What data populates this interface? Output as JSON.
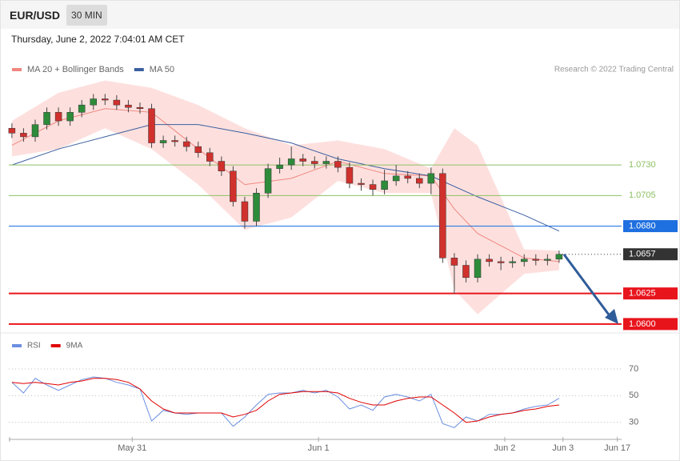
{
  "header": {
    "symbol": "EUR/USD",
    "timeframe": "30 MIN",
    "timestamp": "Thursday, June 2, 2022 7:04:01 AM CET"
  },
  "chart_data": [
    {
      "type": "candlestick",
      "credit": "Research © 2022 Trading Central",
      "up_color": "#2e8b3a",
      "down_color": "#d0312d",
      "xlim": [
        -0.8,
        157.1
      ],
      "ylim": [
        1.0596,
        1.0802
      ],
      "x": [
        0,
        3,
        6,
        9,
        12,
        15,
        18,
        21,
        24,
        27,
        30,
        33,
        36,
        39,
        42,
        45,
        48,
        51,
        54,
        57,
        60,
        63,
        66,
        69,
        72,
        75,
        78,
        81,
        84,
        87,
        90,
        93,
        96,
        99,
        102,
        105,
        108,
        111,
        114,
        117,
        120,
        123,
        126,
        129,
        132,
        135,
        138,
        141
      ],
      "open": [
        1.076,
        1.0756,
        1.0753,
        1.0763,
        1.0773,
        1.0766,
        1.0773,
        1.0779,
        1.0784,
        1.0783,
        1.0779,
        1.0777,
        1.0776,
        1.0748,
        1.075,
        1.0749,
        1.0745,
        1.074,
        1.0733,
        1.0725,
        1.07,
        1.0684,
        1.0707,
        1.0727,
        1.073,
        1.0735,
        1.0733,
        1.0731,
        1.0733,
        1.0728,
        1.0715,
        1.0714,
        1.071,
        1.0717,
        1.0721,
        1.0719,
        1.0715,
        1.0723,
        1.0654,
        1.0648,
        1.0638,
        1.0653,
        1.0651,
        1.065,
        1.0651,
        1.0653,
        1.0652,
        1.0653
      ],
      "high": [
        1.0764,
        1.076,
        1.0767,
        1.0777,
        1.0777,
        1.0777,
        1.0783,
        1.0788,
        1.0788,
        1.0787,
        1.0783,
        1.0781,
        1.078,
        1.0754,
        1.0754,
        1.0753,
        1.0749,
        1.0744,
        1.0737,
        1.0729,
        1.0704,
        1.0711,
        1.0731,
        1.0736,
        1.0745,
        1.0739,
        1.0737,
        1.0737,
        1.0737,
        1.0732,
        1.0719,
        1.0718,
        1.0726,
        1.073,
        1.0725,
        1.0723,
        1.0728,
        1.0727,
        1.0658,
        1.0652,
        1.0657,
        1.0657,
        1.0655,
        1.0655,
        1.0657,
        1.0657,
        1.0657,
        1.066
      ],
      "low": [
        1.0752,
        1.0749,
        1.0749,
        1.0759,
        1.0762,
        1.0762,
        1.0769,
        1.0775,
        1.0779,
        1.0775,
        1.0773,
        1.0772,
        1.0744,
        1.0744,
        1.0745,
        1.0741,
        1.0736,
        1.0729,
        1.0721,
        1.0696,
        1.0678,
        1.068,
        1.0703,
        1.0723,
        1.0726,
        1.0729,
        1.0727,
        1.0727,
        1.0724,
        1.0711,
        1.0709,
        1.0705,
        1.0706,
        1.0713,
        1.0715,
        1.0711,
        1.0706,
        1.065,
        1.0625,
        1.0634,
        1.0634,
        1.0647,
        1.0644,
        1.0646,
        1.0647,
        1.0648,
        1.0648,
        1.065
      ],
      "close": [
        1.0756,
        1.0753,
        1.0763,
        1.0773,
        1.0766,
        1.0773,
        1.0779,
        1.0784,
        1.0783,
        1.0779,
        1.0777,
        1.0776,
        1.0748,
        1.075,
        1.0749,
        1.0745,
        1.074,
        1.0733,
        1.0725,
        1.07,
        1.0684,
        1.0707,
        1.0727,
        1.073,
        1.0735,
        1.0733,
        1.0731,
        1.0733,
        1.0728,
        1.0715,
        1.0714,
        1.071,
        1.0717,
        1.0721,
        1.0719,
        1.0715,
        1.0723,
        1.0654,
        1.0648,
        1.0638,
        1.0653,
        1.0651,
        1.065,
        1.0651,
        1.0653,
        1.0652,
        1.0653,
        1.0657
      ],
      "overlays": [
        {
          "name": "MA 20 + Bollinger Bands",
          "color": "#f0877f",
          "band_color": "#fde0de",
          "x": [
            0,
            12,
            24,
            36,
            48,
            60,
            72,
            84,
            96,
            108,
            114,
            120,
            132,
            141
          ],
          "values": [
            1.0746,
            1.0766,
            1.0776,
            1.0773,
            1.0743,
            1.0714,
            1.0719,
            1.0733,
            1.0723,
            1.0721,
            1.0694,
            1.0674,
            1.0654,
            1.0651
          ],
          "upper": [
            1.0766,
            1.0789,
            1.0799,
            1.0793,
            1.0779,
            1.076,
            1.0746,
            1.075,
            1.0743,
            1.0727,
            1.076,
            1.0746,
            1.0661,
            1.066
          ],
          "lower": [
            1.0737,
            1.0743,
            1.076,
            1.0743,
            1.0714,
            1.0677,
            1.0687,
            1.0717,
            1.0707,
            1.0707,
            1.0628,
            1.0608,
            1.0641,
            1.0644
          ]
        },
        {
          "name": "MA 50",
          "color": "#3b5fa0",
          "x": [
            0,
            12,
            24,
            36,
            48,
            60,
            72,
            84,
            96,
            108,
            120,
            132,
            141
          ],
          "values": [
            1.073,
            1.0743,
            1.0753,
            1.0763,
            1.0763,
            1.0756,
            1.0748,
            1.0735,
            1.0727,
            1.0721,
            1.0704,
            1.0689,
            1.0676
          ]
        }
      ],
      "levels": [
        {
          "value": 1.073,
          "label": "1.0730",
          "color": "#8cc063",
          "boxed": false
        },
        {
          "value": 1.0705,
          "label": "1.0705",
          "color": "#8cc063",
          "boxed": false
        },
        {
          "value": 1.068,
          "label": "1.0680",
          "color": "#1e6fe0",
          "boxed": true
        },
        {
          "value": 1.0657,
          "label": "1.0657",
          "color": "#333333",
          "boxed": true,
          "dotted": true
        },
        {
          "value": 1.0625,
          "label": "1.0625",
          "color": "#e8141c",
          "boxed": true
        },
        {
          "value": 1.06,
          "label": "1.0600",
          "color": "#e8141c",
          "boxed": true
        }
      ]
    },
    {
      "type": "line",
      "xlim": [
        -0.8,
        157.1
      ],
      "ylim": [
        22,
        79
      ],
      "yticks": [
        30,
        50,
        70
      ],
      "xticks": [
        {
          "value": 31,
          "label": "May 31"
        },
        {
          "value": 79,
          "label": "Jun 1"
        },
        {
          "value": 127,
          "label": "Jun 2"
        },
        {
          "value": 142,
          "label": "Jun 3"
        },
        {
          "value": 156,
          "label": "Jun 17"
        }
      ],
      "x": [
        0,
        3,
        6,
        9,
        12,
        15,
        18,
        21,
        24,
        27,
        30,
        33,
        36,
        39,
        42,
        45,
        48,
        51,
        54,
        57,
        60,
        63,
        66,
        69,
        72,
        75,
        78,
        81,
        84,
        87,
        90,
        93,
        96,
        99,
        102,
        105,
        108,
        111,
        114,
        117,
        120,
        123,
        126,
        129,
        132,
        135,
        138,
        141
      ],
      "series": [
        {
          "name": "RSI",
          "color": "#6b8fe0",
          "values": [
            60,
            52,
            63,
            58,
            54,
            58,
            62,
            64,
            63,
            60,
            58,
            55,
            31,
            39,
            37,
            36,
            37,
            37,
            37,
            27,
            34,
            43,
            51,
            52,
            52,
            54,
            52,
            54,
            49,
            40,
            43,
            39,
            49,
            51,
            49,
            46,
            51,
            29,
            26,
            34,
            31,
            36,
            36,
            37,
            40,
            42,
            43,
            48
          ]
        },
        {
          "name": "9MA",
          "color": "#e00000",
          "values": [
            60,
            59,
            60,
            59,
            58,
            60,
            61,
            63,
            63,
            62,
            60,
            55,
            46,
            40,
            37,
            37,
            37,
            37,
            37,
            34,
            36,
            39,
            46,
            51,
            52,
            53,
            53,
            53,
            52,
            48,
            45,
            43,
            43,
            46,
            48,
            49,
            49,
            43,
            37,
            30,
            31,
            34,
            36,
            37,
            39,
            40,
            42,
            43
          ]
        }
      ]
    }
  ]
}
